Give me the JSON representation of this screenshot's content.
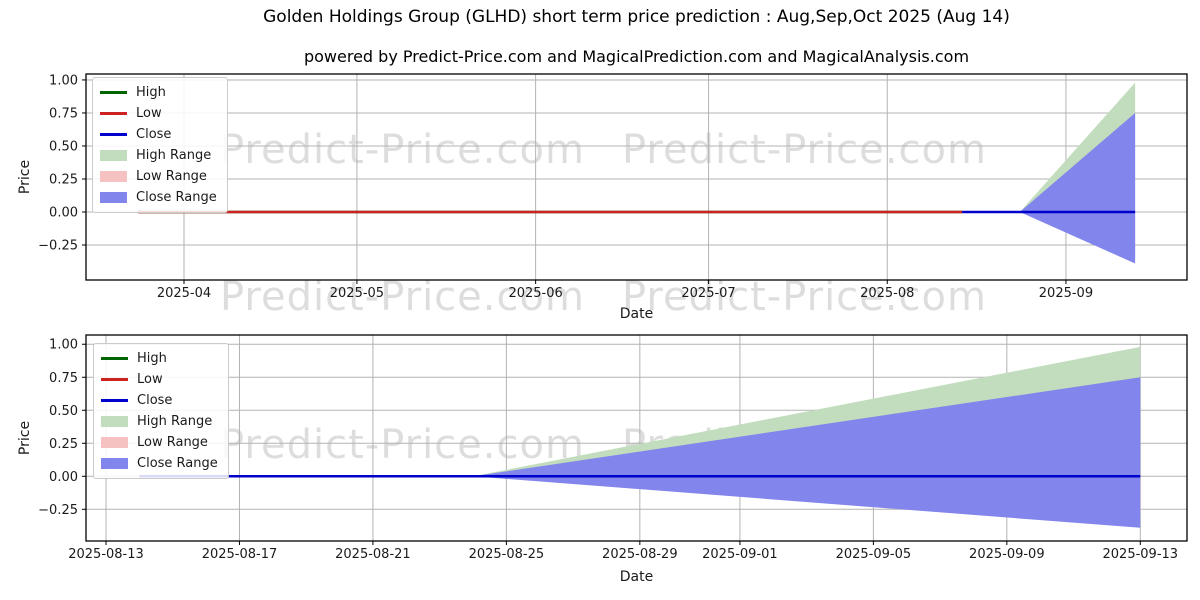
{
  "figure": {
    "title": "Golden Holdings Group (GLHD) short term price prediction : Aug,Sep,Oct 2025 (Aug 14)",
    "subtitle": "powered by Predict-Price.com and MagicalPrediction.com and MagicalAnalysis.com",
    "background": "#ffffff"
  },
  "watermark": {
    "text": "Predict-Price.com",
    "color": "rgba(120,120,120,0.25)"
  },
  "colors": {
    "grid": "#b3b3b3",
    "spine": "#000000",
    "tick_label": "#1a1a1a",
    "high_line": "#006400",
    "low_line": "#cc2222",
    "close_line": "#0000cd",
    "high_range_fill": "#c1ddbd",
    "low_range_fill": "#f6c2c1",
    "close_range_fill": "#8285eb"
  },
  "legend": {
    "position": "upper left",
    "entries": [
      {
        "label": "High",
        "type": "line",
        "color": "#006400"
      },
      {
        "label": "Low",
        "type": "line",
        "color": "#cc2222"
      },
      {
        "label": "Close",
        "type": "line",
        "color": "#0000cd"
      },
      {
        "label": "High Range",
        "type": "patch",
        "color": "#c1ddbd"
      },
      {
        "label": "Low Range",
        "type": "patch",
        "color": "#f6c2c1"
      },
      {
        "label": "Close Range",
        "type": "patch",
        "color": "#8285eb"
      }
    ]
  },
  "chart_data": [
    {
      "type": "line",
      "subplot": "top - full history Mar 2025 to Sep 2025",
      "xlabel": "Date",
      "ylabel": "Price",
      "x_unit": "days since 2025-01-01",
      "xlim": [
        73,
        264
      ],
      "ylim": [
        -0.515,
        1.045
      ],
      "grid": true,
      "legend_position": "upper left",
      "x_ticks": [
        {
          "day": 90,
          "label": "2025-04"
        },
        {
          "day": 120,
          "label": "2025-05"
        },
        {
          "day": 151,
          "label": "2025-06"
        },
        {
          "day": 181,
          "label": "2025-07"
        },
        {
          "day": 212,
          "label": "2025-08"
        },
        {
          "day": 243,
          "label": "2025-09"
        }
      ],
      "y_ticks": [
        {
          "value": 1.0,
          "label": "1.00"
        },
        {
          "value": 0.75,
          "label": "0.75"
        },
        {
          "value": 0.5,
          "label": "0.50"
        },
        {
          "value": 0.25,
          "label": "0.25"
        },
        {
          "value": 0.0,
          "label": "0.00"
        },
        {
          "value": -0.25,
          "label": "−0.25"
        }
      ],
      "series": [
        {
          "name": "High",
          "color": "#006400",
          "start_date": "2025-03-24",
          "end_date": "2025-08-14",
          "points": [
            [
              82,
              0.0
            ],
            [
              225,
              0.0
            ]
          ],
          "note": "flat at 0.00, hidden beneath Low line"
        },
        {
          "name": "Low",
          "color": "#cc2222",
          "start_date": "2025-03-24",
          "end_date": "2025-08-14",
          "points": [
            [
              82,
              0.0
            ],
            [
              225,
              0.0
            ]
          ]
        },
        {
          "name": "Close",
          "color": "#0000cd",
          "start_date": "2025-08-14",
          "end_date": "2025-09-13",
          "points": [
            [
              225,
              0.0
            ],
            [
              255,
              0.0
            ]
          ],
          "note": "predicted close, flat at 0.00"
        }
      ],
      "ranges": [
        {
          "name": "High Range",
          "color": "#c1ddbd",
          "apex_date": "2025-08-24",
          "end_date": "2025-09-13",
          "apex_day": 235,
          "apex_value": 0.0,
          "end_day": 255,
          "end_top": 0.98,
          "end_bottom": -0.35,
          "visible": true
        },
        {
          "name": "Low Range",
          "color": "#f6c2c1",
          "apex_date": "2025-08-24",
          "end_date": "2025-09-13",
          "apex_day": 235,
          "apex_value": 0.0,
          "end_day": 255,
          "end_top": 0.0,
          "end_bottom": -0.3,
          "visible": false,
          "note": "hidden behind Close Range band"
        },
        {
          "name": "Close Range",
          "color": "#8285eb",
          "apex_date": "2025-08-24",
          "end_date": "2025-09-13",
          "apex_day": 235,
          "apex_value": 0.0,
          "end_day": 255,
          "end_top": 0.75,
          "end_bottom": -0.39,
          "visible": true
        }
      ]
    },
    {
      "type": "line",
      "subplot": "bottom - zoom on prediction window 2025-08-13 to 2025-09-13",
      "xlabel": "Date",
      "ylabel": "Price",
      "x_unit": "days since 2025-01-01",
      "xlim": [
        223.4,
        256.4
      ],
      "ylim": [
        -0.49,
        1.07
      ],
      "grid": true,
      "legend_position": "upper left",
      "x_ticks": [
        {
          "day": 224,
          "label": "2025-08-13"
        },
        {
          "day": 228,
          "label": "2025-08-17"
        },
        {
          "day": 232,
          "label": "2025-08-21"
        },
        {
          "day": 236,
          "label": "2025-08-25"
        },
        {
          "day": 240,
          "label": "2025-08-29"
        },
        {
          "day": 243,
          "label": "2025-09-01"
        },
        {
          "day": 247,
          "label": "2025-09-05"
        },
        {
          "day": 251,
          "label": "2025-09-09"
        },
        {
          "day": 255,
          "label": "2025-09-13"
        }
      ],
      "y_ticks": [
        {
          "value": 1.0,
          "label": "1.00"
        },
        {
          "value": 0.75,
          "label": "0.75"
        },
        {
          "value": 0.5,
          "label": "0.50"
        },
        {
          "value": 0.25,
          "label": "0.25"
        },
        {
          "value": 0.0,
          "label": "0.00"
        },
        {
          "value": -0.25,
          "label": "−0.25"
        }
      ],
      "series": [
        {
          "name": "Close",
          "color": "#0000cd",
          "start_date": "2025-08-14",
          "end_date": "2025-09-13",
          "points": [
            [
              225,
              0.0
            ],
            [
              255,
              0.0
            ]
          ],
          "note": "flat at 0.00 across whole window"
        }
      ],
      "ranges": [
        {
          "name": "High Range",
          "color": "#c1ddbd",
          "apex_date": "2025-08-24",
          "end_date": "2025-09-13",
          "apex_day": 235,
          "apex_value": 0.0,
          "end_day": 255,
          "end_top": 0.98,
          "end_bottom": -0.35,
          "visible": true
        },
        {
          "name": "Low Range",
          "color": "#f6c2c1",
          "apex_date": "2025-08-24",
          "end_date": "2025-09-13",
          "apex_day": 235,
          "apex_value": 0.0,
          "end_day": 255,
          "end_top": 0.0,
          "end_bottom": -0.3,
          "visible": false,
          "note": "hidden behind Close Range band"
        },
        {
          "name": "Close Range",
          "color": "#8285eb",
          "apex_date": "2025-08-24",
          "end_date": "2025-09-13",
          "apex_day": 235,
          "apex_value": 0.0,
          "end_day": 255,
          "end_top": 0.75,
          "end_bottom": -0.39,
          "visible": true
        }
      ]
    }
  ]
}
